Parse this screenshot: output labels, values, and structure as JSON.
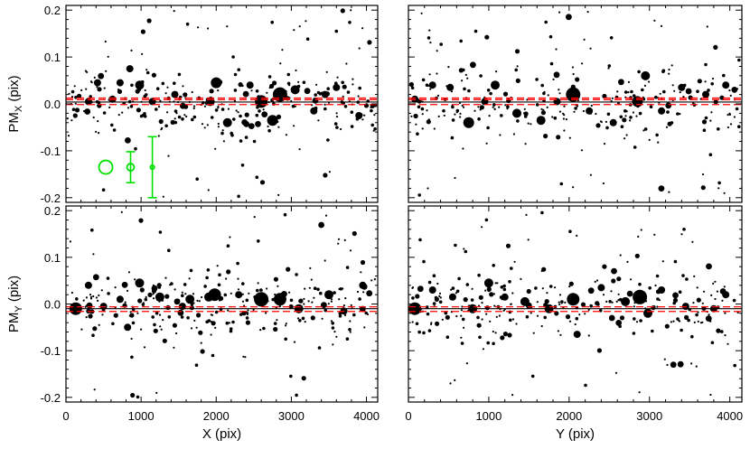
{
  "chart_data": {
    "type": "scatter",
    "layout": "2x2 panel grid",
    "panels": [
      {
        "id": "tl",
        "x_quantity": "X",
        "y_quantity": "PMx"
      },
      {
        "id": "tr",
        "x_quantity": "Y",
        "y_quantity": "PMx"
      },
      {
        "id": "bl",
        "x_quantity": "X",
        "y_quantity": "PMy"
      },
      {
        "id": "br",
        "x_quantity": "Y",
        "y_quantity": "PMy"
      }
    ],
    "xlim": [
      0,
      4150
    ],
    "ylim": [
      -0.21,
      0.21
    ],
    "x_ticks": [
      0,
      1000,
      2000,
      3000,
      4000
    ],
    "x_tick_labels": [
      "0",
      "1000",
      "2000",
      "3000",
      "4000"
    ],
    "y_ticks": [
      -0.2,
      -0.1,
      0.0,
      0.1,
      0.2
    ],
    "y_tick_labels": [
      "-0.2",
      "-0.1",
      "0.0",
      "0.1",
      "0.2"
    ],
    "axis_labels": {
      "x_left": "X (pix)",
      "x_right": "Y (pix)",
      "y_top_main": "PM",
      "y_top_sub": "X",
      "y_top_unit": " (pix)",
      "y_bottom_main": "PM",
      "y_bottom_sub": "Y",
      "y_bottom_unit": " (pix)"
    },
    "reference_lines": {
      "PMx": {
        "mean": 0.004,
        "band": [
          -0.0015,
          0.009,
          0.0125
        ]
      },
      "PMy": {
        "mean": -0.01,
        "band": [
          -0.016,
          -0.006
        ]
      }
    },
    "point_count_per_panel": 300,
    "big_points": {
      "tl": [
        [
          300,
          0.005,
          4
        ],
        [
          420,
          0.045,
          4
        ],
        [
          620,
          0.01,
          4
        ],
        [
          720,
          0.045,
          4
        ],
        [
          850,
          0.075,
          4
        ],
        [
          980,
          0.04,
          5
        ],
        [
          1150,
          0.005,
          4
        ],
        [
          1450,
          0.02,
          4
        ],
        [
          1920,
          0.005,
          5
        ],
        [
          2000,
          0.045,
          6
        ],
        [
          2150,
          -0.04,
          5
        ],
        [
          2450,
          0.04,
          4
        ],
        [
          2600,
          0.005,
          7
        ],
        [
          2750,
          -0.035,
          6
        ],
        [
          2850,
          0.02,
          8
        ],
        [
          3050,
          0.03,
          5
        ],
        [
          3300,
          -0.015,
          4
        ],
        [
          3450,
          0.02,
          4
        ],
        [
          3600,
          0.035,
          4
        ],
        [
          3900,
          -0.025,
          4
        ]
      ],
      "tr": [
        [
          80,
          0.01,
          4
        ],
        [
          300,
          0.04,
          4
        ],
        [
          520,
          0.035,
          4
        ],
        [
          750,
          -0.04,
          6
        ],
        [
          950,
          0.005,
          4
        ],
        [
          1080,
          0.04,
          5
        ],
        [
          1350,
          -0.02,
          5
        ],
        [
          1650,
          -0.035,
          5
        ],
        [
          1850,
          0.005,
          4
        ],
        [
          2050,
          0.02,
          8
        ],
        [
          2250,
          -0.015,
          4
        ],
        [
          2550,
          -0.04,
          4
        ],
        [
          2850,
          0.005,
          6
        ],
        [
          2950,
          0.06,
          5
        ],
        [
          3150,
          -0.015,
          4
        ],
        [
          3400,
          0.035,
          4
        ],
        [
          3700,
          0.02,
          4
        ],
        [
          3950,
          0.04,
          4
        ]
      ],
      "bl": [
        [
          130,
          -0.01,
          7
        ],
        [
          300,
          0.04,
          4
        ],
        [
          500,
          -0.005,
          4
        ],
        [
          720,
          0.01,
          4
        ],
        [
          820,
          -0.05,
          4
        ],
        [
          980,
          0.045,
          5
        ],
        [
          1250,
          0.015,
          5
        ],
        [
          1550,
          -0.005,
          4
        ],
        [
          1650,
          0.01,
          5
        ],
        [
          1900,
          0.015,
          5
        ],
        [
          1980,
          0.02,
          7
        ],
        [
          2300,
          0.02,
          4
        ],
        [
          2600,
          0.01,
          8
        ],
        [
          2850,
          0.01,
          7
        ],
        [
          3100,
          -0.01,
          5
        ],
        [
          3500,
          0.02,
          5
        ],
        [
          3700,
          -0.015,
          4
        ],
        [
          3950,
          0.04,
          4
        ]
      ],
      "br": [
        [
          80,
          -0.01,
          7
        ],
        [
          300,
          0.03,
          4
        ],
        [
          550,
          0.015,
          4
        ],
        [
          800,
          -0.01,
          5
        ],
        [
          1000,
          0.045,
          5
        ],
        [
          1200,
          0.015,
          4
        ],
        [
          1450,
          0.005,
          5
        ],
        [
          1750,
          -0.01,
          5
        ],
        [
          2050,
          0.01,
          7
        ],
        [
          2100,
          -0.065,
          4
        ],
        [
          2400,
          0.035,
          4
        ],
        [
          2700,
          0.005,
          5
        ],
        [
          2880,
          0.015,
          8
        ],
        [
          2980,
          -0.02,
          5
        ],
        [
          3150,
          0.03,
          4
        ],
        [
          3450,
          -0.005,
          4
        ],
        [
          3800,
          -0.01,
          4
        ],
        [
          3950,
          0.02,
          4
        ]
      ]
    },
    "error_bar_legend": {
      "panel": "tl",
      "color": "#00e000",
      "items": [
        {
          "x": 530,
          "y": -0.135,
          "err": 0.0,
          "marker_size": "large"
        },
        {
          "x": 860,
          "y": -0.135,
          "err": 0.033,
          "marker_size": "medium"
        },
        {
          "x": 1150,
          "y": -0.135,
          "err": 0.065,
          "marker_size": "small"
        }
      ]
    },
    "colors": {
      "points": "#000000",
      "mean_line": "#000000",
      "band": "#ff0000",
      "error_bars": "#00e000"
    },
    "grid": false,
    "legend": "none"
  }
}
